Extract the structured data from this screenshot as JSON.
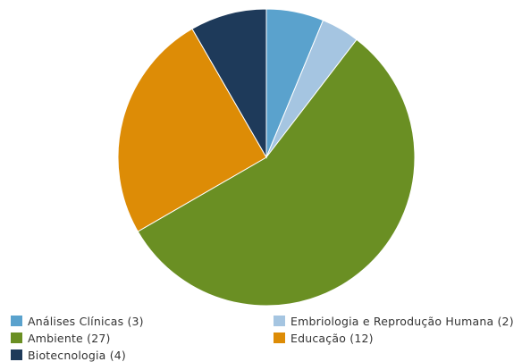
{
  "chart_data": {
    "type": "pie",
    "series": [
      {
        "name": "Análises Clínicas",
        "value": 3,
        "label": "Análises Clínicas (3)",
        "color": "#5aa2cd"
      },
      {
        "name": "Embriologia e Reprodução Humana",
        "value": 2,
        "label": "Embriologia e Reprodução Humana (2)",
        "color": "#a5c5e1"
      },
      {
        "name": "Ambiente",
        "value": 27,
        "label": "Ambiente (27)",
        "color": "#6a8f23"
      },
      {
        "name": "Educação",
        "value": 12,
        "label": "Educação (12)",
        "color": "#dd8c06"
      },
      {
        "name": "Biotecnologia",
        "value": 4,
        "label": "Biotecnologia (4)",
        "color": "#1e3a5a"
      }
    ],
    "legend_position": "bottom"
  }
}
